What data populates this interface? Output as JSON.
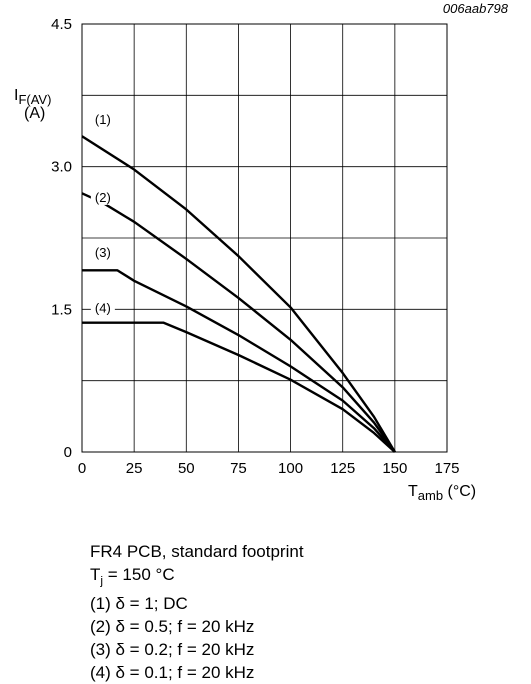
{
  "chart_data": {
    "type": "line",
    "figure_id": "006aab798",
    "ylabel_main": "I",
    "ylabel_sub": "F(AV)",
    "ylabel_unit": "(A)",
    "xlabel_main": "T",
    "xlabel_sub": "amb",
    "xlabel_unit": " (°C)",
    "xlim": [
      0,
      175
    ],
    "ylim": [
      0,
      4.5
    ],
    "x_ticks": [
      "0",
      "25",
      "50",
      "75",
      "100",
      "125",
      "150",
      "175"
    ],
    "y_ticks": [
      {
        "value": 0,
        "label": "0"
      },
      {
        "value": 1.5,
        "label": "1.5"
      },
      {
        "value": 3.0,
        "label": "3.0"
      },
      {
        "value": 4.5,
        "label": "4.5"
      }
    ],
    "y_grid": [
      0.75,
      1.5,
      2.25,
      3.0,
      3.75,
      4.5
    ],
    "grid": true,
    "series": [
      {
        "name": "(1)",
        "label_at": [
          10,
          3.47
        ],
        "points": [
          [
            0,
            3.32
          ],
          [
            25,
            2.97
          ],
          [
            50,
            2.55
          ],
          [
            75,
            2.06
          ],
          [
            100,
            1.52
          ],
          [
            125,
            0.83
          ],
          [
            140,
            0.37
          ],
          [
            150,
            0
          ]
        ]
      },
      {
        "name": "(2)",
        "label_at": [
          10,
          2.65
        ],
        "points": [
          [
            0,
            2.72
          ],
          [
            10,
            2.62
          ],
          [
            25,
            2.42
          ],
          [
            50,
            2.03
          ],
          [
            75,
            1.62
          ],
          [
            100,
            1.18
          ],
          [
            125,
            0.68
          ],
          [
            140,
            0.31
          ],
          [
            150,
            0
          ]
        ]
      },
      {
        "name": "(3)",
        "label_at": [
          10,
          2.07
        ],
        "points": [
          [
            0,
            1.91
          ],
          [
            17,
            1.91
          ],
          [
            25,
            1.8
          ],
          [
            50,
            1.53
          ],
          [
            75,
            1.23
          ],
          [
            100,
            0.9
          ],
          [
            125,
            0.54
          ],
          [
            140,
            0.25
          ],
          [
            150,
            0
          ]
        ]
      },
      {
        "name": "(4)",
        "label_at": [
          10,
          1.49
        ],
        "points": [
          [
            0,
            1.36
          ],
          [
            39,
            1.36
          ],
          [
            50,
            1.26
          ],
          [
            75,
            1.02
          ],
          [
            100,
            0.76
          ],
          [
            125,
            0.45
          ],
          [
            140,
            0.2
          ],
          [
            150,
            0
          ]
        ]
      }
    ]
  },
  "notes": {
    "line1": "FR4 PCB, standard footprint",
    "line2_main": "T",
    "line2_sub": "j",
    "line2_rest": " = 150 °C",
    "line3": "(1) δ = 1; DC",
    "line4": "(2) δ = 0.5; f = 20 kHz",
    "line5": "(3) δ = 0.2; f = 20 kHz",
    "line6": "(4) δ = 0.1; f = 20 kHz"
  }
}
